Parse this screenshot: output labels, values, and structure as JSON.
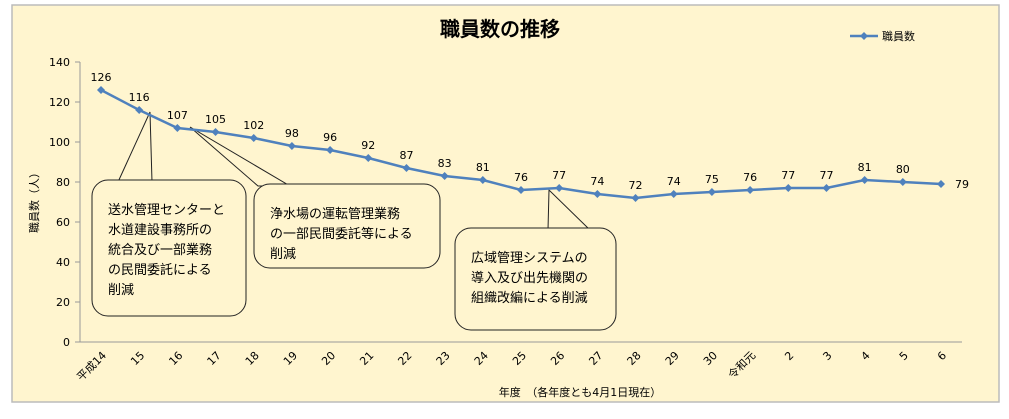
{
  "chart_data": {
    "type": "line",
    "title": "職員数の推移",
    "xlabel": "年度　（各年度とも4月1日現在）",
    "ylabel": "職員数（人）",
    "ylim": [
      0,
      140
    ],
    "yticks": [
      0,
      20,
      40,
      60,
      80,
      100,
      120,
      140
    ],
    "grid": false,
    "legend": "top-right",
    "categories": [
      "平成14",
      "15",
      "16",
      "17",
      "18",
      "19",
      "20",
      "21",
      "22",
      "23",
      "24",
      "25",
      "26",
      "27",
      "28",
      "29",
      "30",
      "令和元",
      "2",
      "3",
      "4",
      "5",
      "6"
    ],
    "series": [
      {
        "name": "職員数",
        "color": "#4F81BD",
        "values": [
          126,
          116,
          107,
          105,
          102,
          98,
          96,
          92,
          87,
          83,
          81,
          76,
          77,
          74,
          72,
          74,
          75,
          76,
          77,
          77,
          81,
          80,
          79
        ]
      }
    ],
    "annotations": [
      {
        "text": "送水管理センターと\n水道建設事務所の\n統合及び一部業務\nの民間委託による\n削減",
        "points_to": [
          "15",
          "16"
        ]
      },
      {
        "text": "浄水場の運転管理業務\nの一部民間委託等による\n削減",
        "points_to": [
          "16"
        ]
      },
      {
        "text": "広域管理システムの\n導入及び出先機関の\n組織改編による削減",
        "points_to": [
          "26"
        ]
      }
    ]
  },
  "colors": {
    "background": "#FFF5CF",
    "line": "#4F81BD"
  }
}
